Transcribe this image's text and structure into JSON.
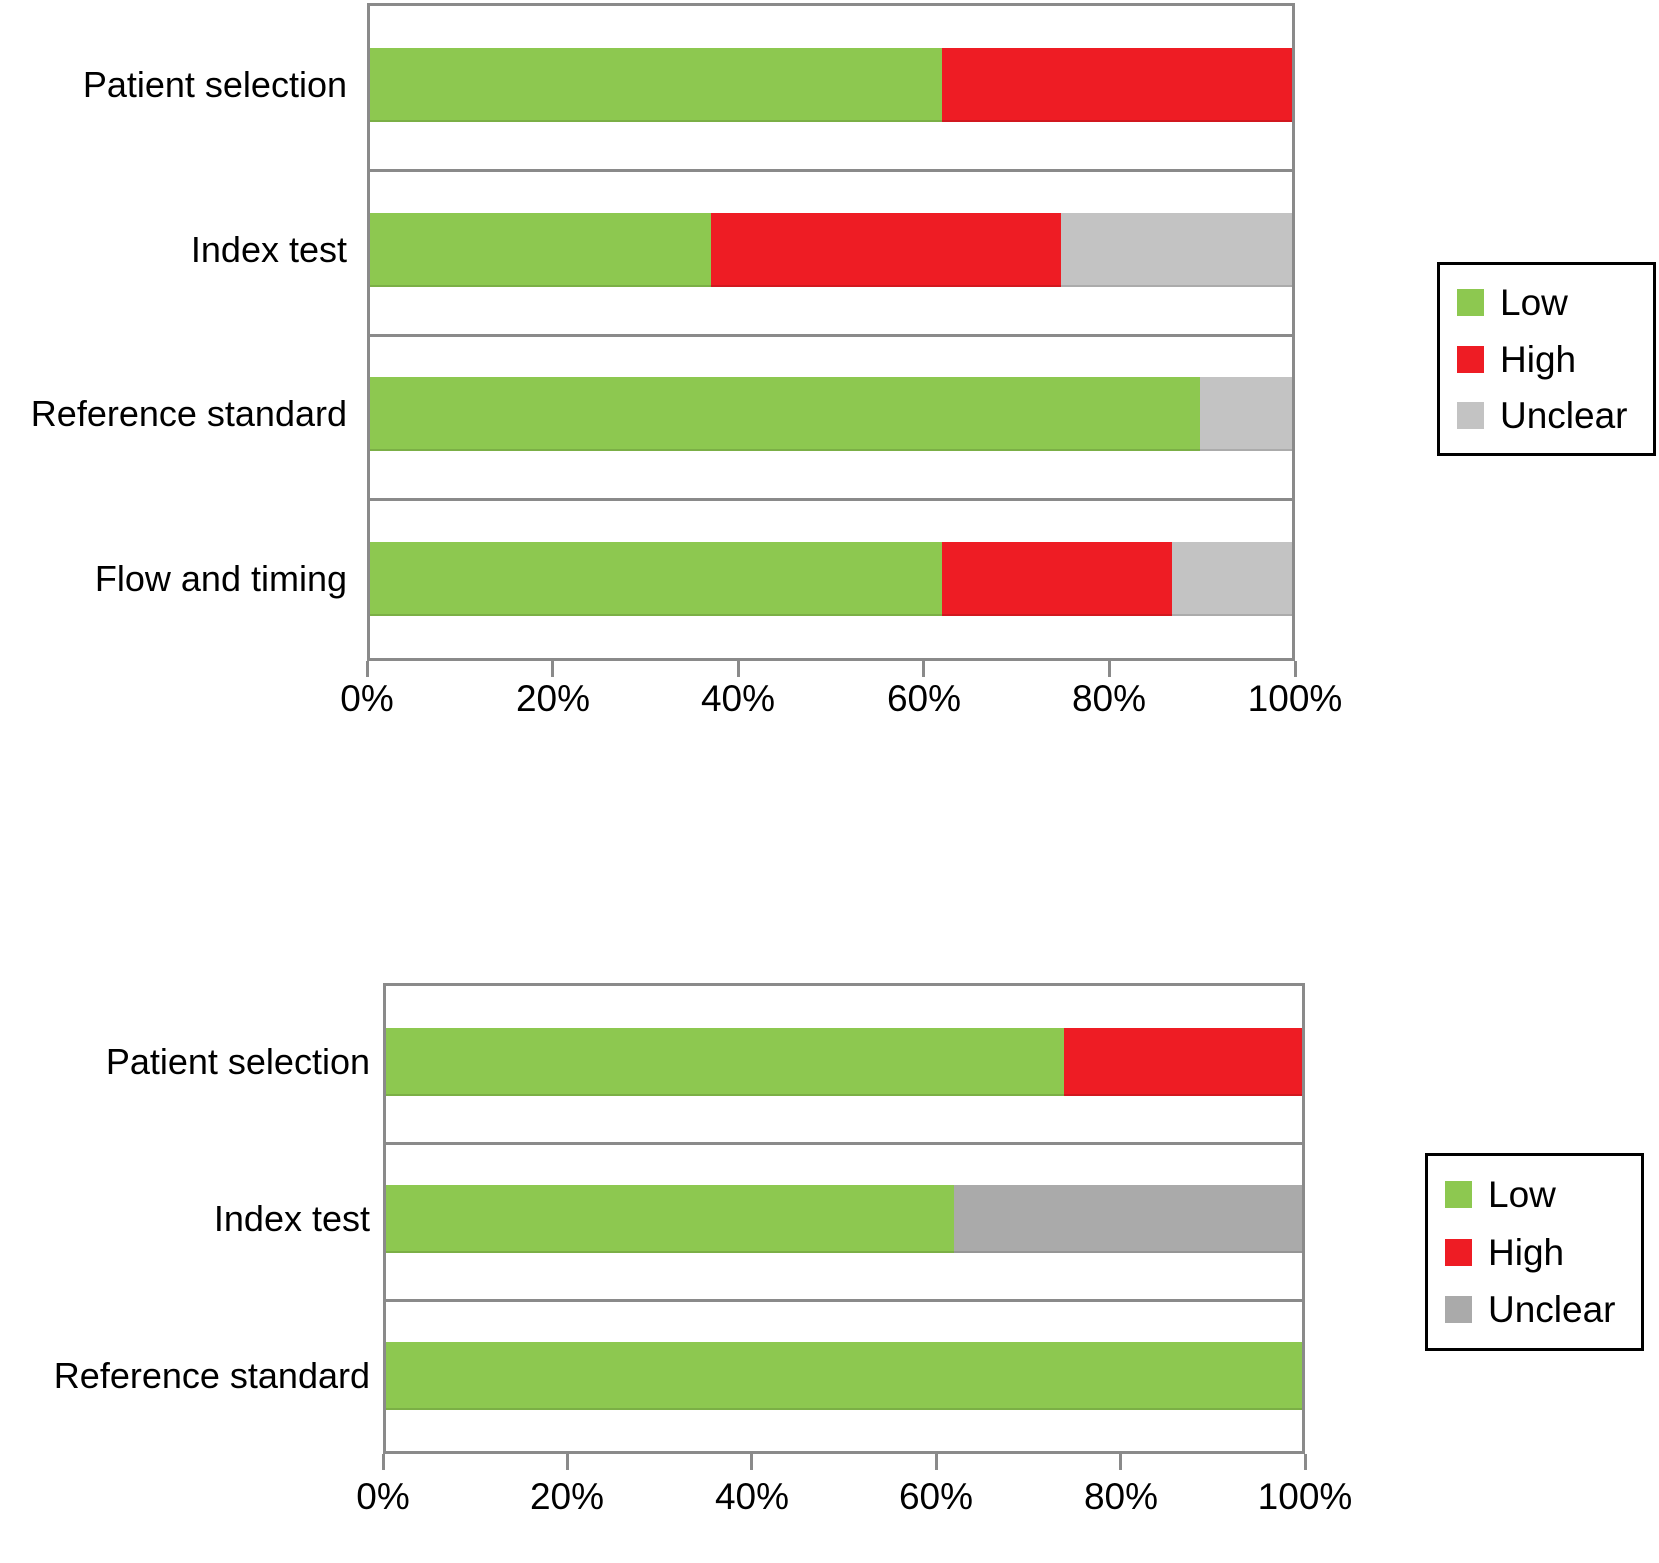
{
  "figure": {
    "background": "#ffffff",
    "axis_color": "#8a8a8a",
    "text_color": "#000000"
  },
  "chart_data": [
    {
      "type": "bar",
      "orientation": "horizontal",
      "stacked": true,
      "title": "",
      "categories": [
        "Patient selection",
        "Index test",
        "Reference standard",
        "Flow and timing"
      ],
      "series": [
        {
          "name": "Low",
          "color": "#8dc850",
          "values": [
            62,
            37,
            90,
            62
          ]
        },
        {
          "name": "High",
          "color": "#ee1c24",
          "values": [
            38,
            38,
            0,
            25
          ]
        },
        {
          "name": "Unclear",
          "color": "#c3c3c3",
          "values": [
            0,
            25,
            10,
            13
          ]
        }
      ],
      "x_axis": {
        "min": 0,
        "max": 100,
        "tick_labels": [
          "0%",
          "20%",
          "40%",
          "60%",
          "80%",
          "100%"
        ]
      },
      "legend": {
        "position": "right",
        "entries": [
          "Low",
          "High",
          "Unclear"
        ]
      },
      "grid": "category-separators"
    },
    {
      "type": "bar",
      "orientation": "horizontal",
      "stacked": true,
      "title": "",
      "categories": [
        "Patient selection",
        "Index test",
        "Reference standard"
      ],
      "series": [
        {
          "name": "Low",
          "color": "#8dc850",
          "values": [
            74,
            62,
            100
          ]
        },
        {
          "name": "High",
          "color": "#ee1c24",
          "values": [
            26,
            0,
            0
          ]
        },
        {
          "name": "Unclear",
          "color": "#aaaaaa",
          "values": [
            0,
            38,
            0
          ]
        }
      ],
      "x_axis": {
        "min": 0,
        "max": 100,
        "tick_labels": [
          "0%",
          "20%",
          "40%",
          "60%",
          "80%",
          "100%"
        ]
      },
      "legend": {
        "position": "right",
        "entries": [
          "Low",
          "High",
          "Unclear"
        ]
      },
      "grid": "category-separators"
    }
  ]
}
